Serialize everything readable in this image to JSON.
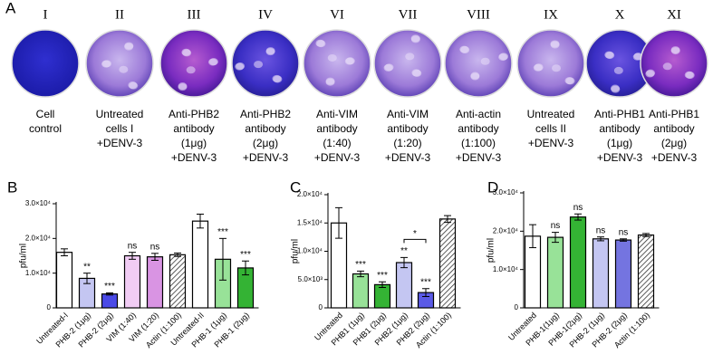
{
  "panel_a": {
    "label": "A",
    "plates": [
      {
        "numeral": "I",
        "caption": [
          "Cell",
          "control"
        ]
      },
      {
        "numeral": "II",
        "caption": [
          "Untreated",
          "cells I",
          "+DENV-3"
        ]
      },
      {
        "numeral": "III",
        "caption": [
          "Anti-PHB2",
          "antibody",
          "(1μg)",
          "+DENV-3"
        ]
      },
      {
        "numeral": "IV",
        "caption": [
          "Anti-PHB2",
          "antibody",
          "(2μg)",
          "+DENV-3"
        ]
      },
      {
        "numeral": "VI",
        "caption": [
          "Anti-VIM",
          "antibody",
          "(1:40)",
          "+DENV-3"
        ]
      },
      {
        "numeral": "VII",
        "caption": [
          "Anti-VIM",
          "antibody",
          "(1:20)",
          "+DENV-3"
        ]
      },
      {
        "numeral": "VIII",
        "caption": [
          "Anti-actin",
          "antibody",
          "(1:100)",
          "+DENV-3"
        ]
      },
      {
        "numeral": "IX",
        "caption": [
          "Untreated",
          "cells II",
          "+DENV-3"
        ]
      },
      {
        "numeral": "X",
        "caption": [
          "Anti-PHB1",
          "antibody",
          "(1μg)",
          "+DENV-3"
        ]
      },
      {
        "numeral": "XI",
        "caption": [
          "Anti-PHB1",
          "antibody",
          "(2μg)",
          "+DENV-3"
        ]
      }
    ]
  },
  "chart_data": [
    {
      "type": "bar",
      "panel_label": "B",
      "y_label": "pfu/ml",
      "categories": [
        "Untreated-I",
        "PHB-2 (1μg)",
        "PHB-2 (2μg)",
        "VIM (1:40)",
        "VIM (1:20)",
        "Actin (1:100)",
        "Untreated-II",
        "PHB-1 (1μg)",
        "PHB-1 (2μg)"
      ],
      "values": [
        16000,
        8500,
        4000,
        15000,
        14700,
        15300,
        25000,
        14000,
        11500
      ],
      "errors": [
        1000,
        1500,
        300,
        1000,
        1000,
        500,
        2000,
        6000,
        2000
      ],
      "significance": [
        null,
        "**",
        "***",
        "ns",
        "ns",
        null,
        null,
        "***",
        "***"
      ],
      "colors": [
        "#ffffff",
        "#c4c6f2",
        "#4a4ae6",
        "#f1ccf4",
        "#d994e3",
        "#ffffff",
        "#ffffff",
        "#98e298",
        "#34b334"
      ],
      "hatched": [
        false,
        false,
        false,
        false,
        false,
        true,
        false,
        false,
        false
      ],
      "ylim": [
        0,
        30000
      ],
      "yticks": [
        0,
        {
          "value": 10000,
          "label": "1.0×10⁴"
        },
        {
          "value": 20000,
          "label": "2.0×10⁴"
        },
        {
          "value": 30000,
          "label": "3.0×10⁴"
        }
      ]
    },
    {
      "type": "bar",
      "panel_label": "C",
      "y_label": "pfu/ml",
      "categories": [
        "Untreated",
        "PHB1 (1μg)",
        "PHB1 (2μg)",
        "PHB2 (1μg)",
        "PHB2 (2μg)",
        "Actin (1:100)"
      ],
      "values": [
        15000,
        6000,
        4100,
        8000,
        2700,
        15700
      ],
      "errors": [
        2700,
        500,
        500,
        900,
        700,
        600
      ],
      "significance": [
        null,
        "***",
        "***",
        "**",
        "***",
        null
      ],
      "brackets": [
        {
          "from": 3,
          "to": 4,
          "label": "*"
        }
      ],
      "colors": [
        "#ffffff",
        "#98e298",
        "#34b334",
        "#c4c6f2",
        "#5a5ae6",
        "#ffffff"
      ],
      "hatched": [
        false,
        false,
        false,
        false,
        false,
        true
      ],
      "ylim": [
        0,
        20000
      ],
      "yticks": [
        0,
        {
          "value": 5000,
          "label": "5.0×10³"
        },
        {
          "value": 10000,
          "label": "1.0×10⁴"
        },
        {
          "value": 15000,
          "label": "1.5×10⁴"
        },
        {
          "value": 20000,
          "label": "2.0×10⁴"
        }
      ]
    },
    {
      "type": "bar",
      "panel_label": "D",
      "y_label": "pfu/ml",
      "categories": [
        "Untreated",
        "PHB-1(1μg)",
        "PHB-1(2μg)",
        "PHB-2 (1μg)",
        "PHB-2 (2μg)",
        "Actin (1:100)"
      ],
      "values": [
        18700,
        18400,
        23700,
        18000,
        17700,
        19000
      ],
      "errors": [
        3000,
        1300,
        800,
        500,
        300,
        400
      ],
      "significance": [
        null,
        "ns",
        "ns",
        "ns",
        "ns",
        null
      ],
      "colors": [
        "#ffffff",
        "#98e298",
        "#34b334",
        "#c4c6f2",
        "#7474e0",
        "#ffffff"
      ],
      "hatched": [
        false,
        false,
        false,
        false,
        false,
        true
      ],
      "ylim": [
        0,
        30000
      ],
      "yticks": [
        0,
        {
          "value": 10000,
          "label": "1.0×10⁴"
        },
        {
          "value": 20000,
          "label": "2.0×10⁴"
        },
        {
          "value": 30000,
          "label": "3.0×10⁴"
        }
      ]
    }
  ]
}
